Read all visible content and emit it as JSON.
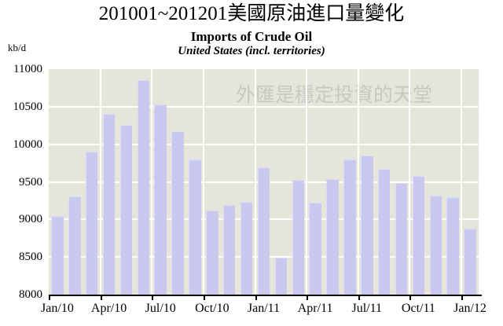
{
  "header": {
    "title": "201001~201201美國原油進口量變化",
    "subtitle": "Imports of Crude Oil",
    "subsubtitle": "United States (incl. territories)",
    "unit_label": "kb/d"
  },
  "watermark": {
    "text": "外匯是穩定投資的天堂"
  },
  "chart_data": {
    "type": "bar",
    "title": "Imports of Crude Oil",
    "subtitle": "United States (incl. territories)",
    "ylabel": "kb/d",
    "ylim": [
      8000,
      11000
    ],
    "ytick_step": 500,
    "yticks": [
      8000,
      8500,
      9000,
      9500,
      10000,
      10500,
      11000
    ],
    "xtick_labels": [
      "Jan/10",
      "Apr/10",
      "Jul/10",
      "Oct/10",
      "Jan/11",
      "Apr/11",
      "Jul/11",
      "Oct/11",
      "Jan/12"
    ],
    "xtick_every_n_categories": 3,
    "categories": [
      "Jan/10",
      "Feb/10",
      "Mar/10",
      "Apr/10",
      "May/10",
      "Jun/10",
      "Jul/10",
      "Aug/10",
      "Sep/10",
      "Oct/10",
      "Nov/10",
      "Dec/10",
      "Jan/11",
      "Feb/11",
      "Mar/11",
      "Apr/11",
      "May/11",
      "Jun/11",
      "Jul/11",
      "Aug/11",
      "Sep/11",
      "Oct/11",
      "Nov/11",
      "Dec/11",
      "Jan/12"
    ],
    "values": [
      9050,
      9310,
      9900,
      10400,
      10260,
      10850,
      10530,
      10170,
      9800,
      9120,
      9190,
      9230,
      9690,
      8490,
      9530,
      9220,
      9540,
      9800,
      9850,
      9670,
      9480,
      9580,
      9320,
      9300,
      8880
    ],
    "grid": true,
    "legend": false,
    "colors": {
      "bar_fill": "#c9c9f0",
      "bar_edge": "#dcdcf8",
      "plot_bg": "#e5e5d9",
      "gridline": "#ffffff",
      "axis": "#000000",
      "text": "#000000",
      "watermark": "#c3c3bf"
    }
  }
}
